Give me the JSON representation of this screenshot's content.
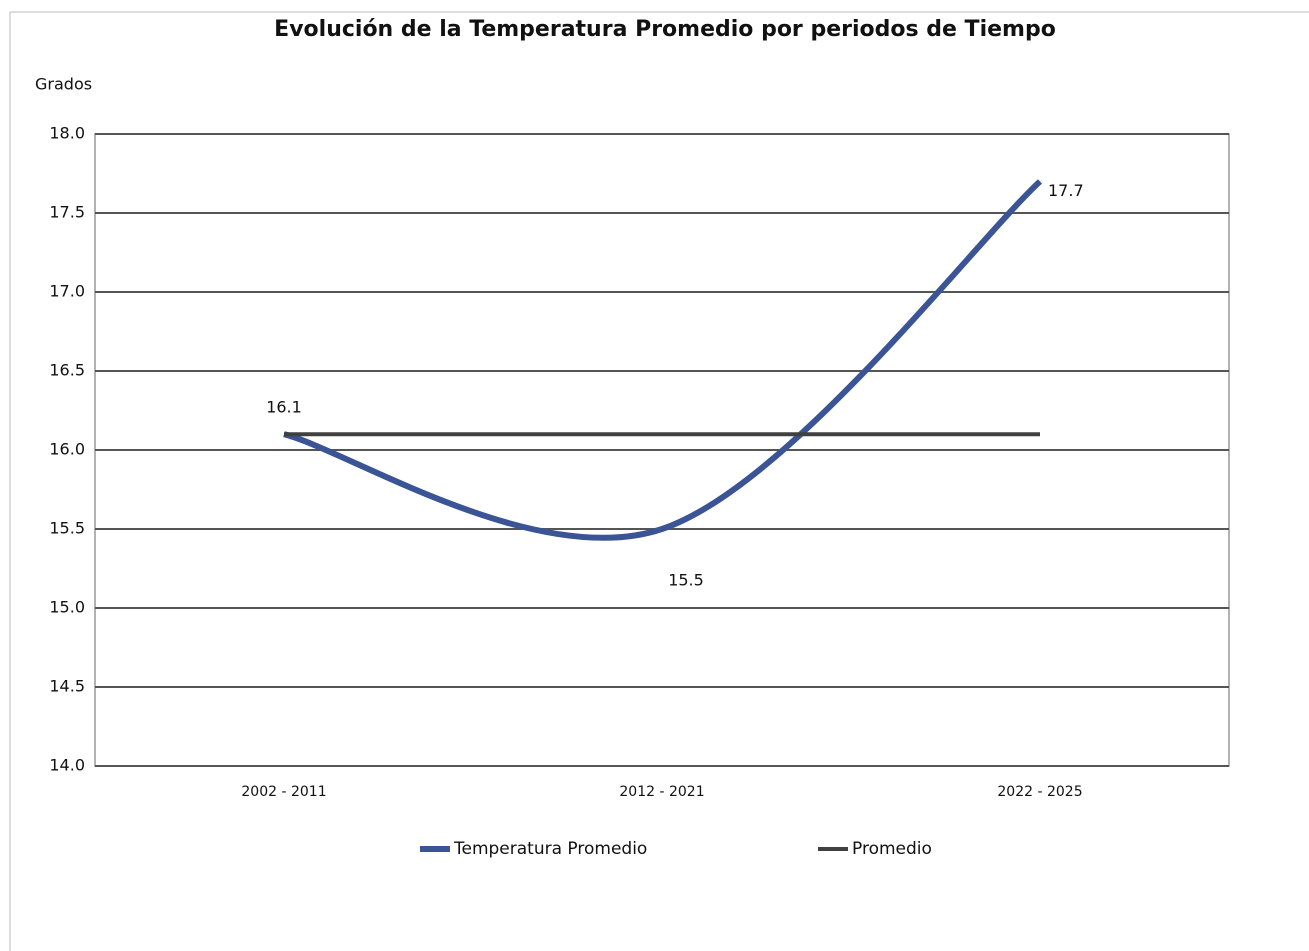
{
  "chart_data": {
    "type": "line",
    "title": "Evolución de la Temperatura Promedio por periodos de Tiempo",
    "y_label": "Grados",
    "categories": [
      "2002 - 2011",
      "2012 - 2021",
      "2022 - 2025"
    ],
    "series": [
      {
        "name": "Temperatura Promedio",
        "color": "#3a5496",
        "values": [
          16.1,
          15.5,
          17.7
        ],
        "smooth": true,
        "data_labels": true
      },
      {
        "name": "Promedio",
        "color": "#404040",
        "values": [
          16.1,
          16.1,
          16.1
        ],
        "smooth": false,
        "data_labels": false
      }
    ],
    "ylim": [
      14.0,
      18.0
    ],
    "yticks": [
      {
        "value": 14,
        "label": "14.0"
      },
      {
        "value": 14.5,
        "label": "14.5"
      },
      {
        "value": 15,
        "label": "15.0"
      },
      {
        "value": 15.5,
        "label": "15.5"
      },
      {
        "value": 16,
        "label": "16.0"
      },
      {
        "value": 16.5,
        "label": "16.5"
      },
      {
        "value": 17,
        "label": "17.0"
      },
      {
        "value": 17.5,
        "label": "17.5"
      },
      {
        "value": 18,
        "label": "18.0"
      }
    ],
    "grid": true,
    "legend": "bottom"
  }
}
